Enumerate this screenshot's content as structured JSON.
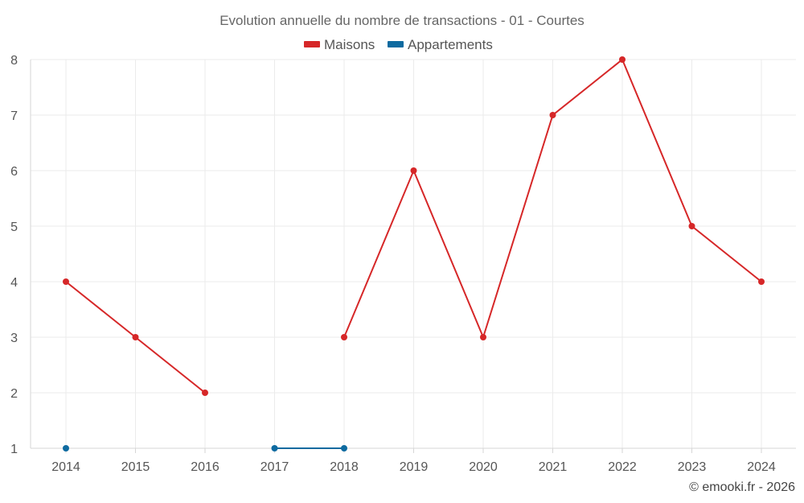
{
  "chart_data": {
    "type": "line",
    "title": "Evolution annuelle du nombre de transactions - 01 - Courtes",
    "categories": [
      "2014",
      "2015",
      "2016",
      "2017",
      "2018",
      "2019",
      "2020",
      "2021",
      "2022",
      "2023",
      "2024"
    ],
    "series": [
      {
        "name": "Maisons",
        "color": "#d62728",
        "values": [
          4,
          3,
          2,
          null,
          3,
          6,
          3,
          7,
          8,
          5,
          4
        ]
      },
      {
        "name": "Appartements",
        "color": "#0d6aa0",
        "values": [
          1,
          null,
          null,
          1,
          1,
          null,
          null,
          null,
          null,
          null,
          null
        ]
      }
    ],
    "ylim": [
      1,
      8
    ],
    "yticks": [
      1,
      2,
      3,
      4,
      5,
      6,
      7,
      8
    ],
    "grid": true,
    "legend_position": "top-center",
    "xlabel": "",
    "ylabel": ""
  },
  "credit": "© emooki.fr - 2026"
}
